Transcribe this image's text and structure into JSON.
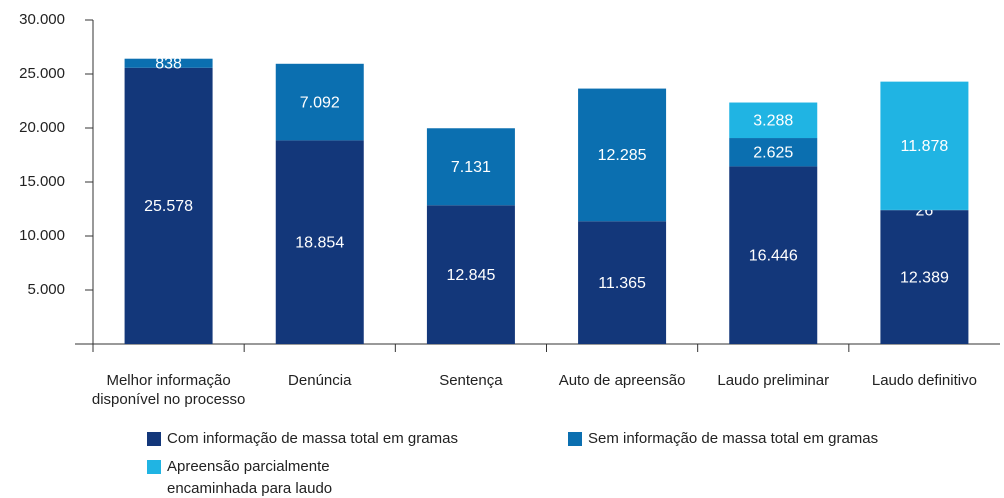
{
  "chart_data": {
    "type": "bar",
    "stacked": true,
    "categories": [
      "Melhor informação disponível no processo",
      "Denúncia",
      "Sentença",
      "Auto de apreensão",
      "Laudo preliminar",
      "Laudo definitivo"
    ],
    "series": [
      {
        "name": "Com informação de massa total em gramas",
        "color": "#13377a",
        "values": [
          25578,
          18854,
          12845,
          11365,
          16446,
          12389
        ],
        "value_labels": [
          "25.578",
          "18.854",
          "12.845",
          "11.365",
          "16.446",
          "12.389"
        ]
      },
      {
        "name": "Sem informação de massa total em gramas",
        "color": "#0b6fb0",
        "values": [
          838,
          7092,
          7131,
          12285,
          2625,
          26
        ],
        "value_labels": [
          "838",
          "7.092",
          "7.131",
          "12.285",
          "2.625",
          "26"
        ]
      },
      {
        "name": "Apreensão parcialmente encaminhada para laudo",
        "color": "#20b4e3",
        "values": [
          null,
          null,
          null,
          null,
          3288,
          11878
        ],
        "value_labels": [
          null,
          null,
          null,
          null,
          "3.288",
          "11.878"
        ]
      }
    ],
    "ylim": [
      0,
      30000
    ],
    "yticks": [
      {
        "value": 5000,
        "label": "5.000"
      },
      {
        "value": 10000,
        "label": "10.000"
      },
      {
        "value": 15000,
        "label": "15.000"
      },
      {
        "value": 20000,
        "label": "20.000"
      },
      {
        "value": 25000,
        "label": "25.000"
      },
      {
        "value": 30000,
        "label": "30.000"
      }
    ],
    "grid": false
  }
}
